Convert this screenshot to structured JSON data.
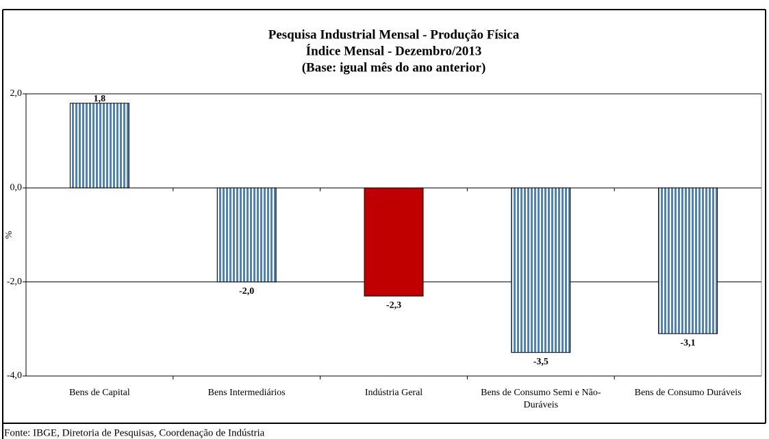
{
  "chart_data": {
    "type": "bar",
    "title": [
      "Pesquisa Industrial Mensal - Produção Física",
      "Índice Mensal - Dezembro/2013",
      "(Base: igual mês do ano anterior)"
    ],
    "y_label": "%",
    "categories": [
      "Bens de Capital",
      "Bens Intermediários",
      "Indústria Geral",
      "Bens de Consumo Semi e Não-Duráveis",
      "Bens de Consumo Duráveis"
    ],
    "values": [
      1.8,
      -2.0,
      -2.3,
      -3.5,
      -3.1
    ],
    "value_labels": [
      "1,8",
      "-2,0",
      "-2,3",
      "-3,5",
      "-3,1"
    ],
    "colors": [
      "#4f81bd",
      "#4f81bd",
      "#c00000",
      "#4f81bd",
      "#4f81bd"
    ],
    "striped": [
      true,
      true,
      false,
      true,
      true
    ],
    "ylim": [
      -4,
      2
    ],
    "yticks": [
      {
        "value": 2,
        "label": "2,0"
      },
      {
        "value": 0,
        "label": "0,0"
      },
      {
        "value": -2,
        "label": "-2,0"
      },
      {
        "value": -4,
        "label": "-4,0"
      }
    ],
    "grid": true,
    "source": "Fonte: IBGE, Diretoria de Pesquisas, Coordenação de Indústria"
  }
}
